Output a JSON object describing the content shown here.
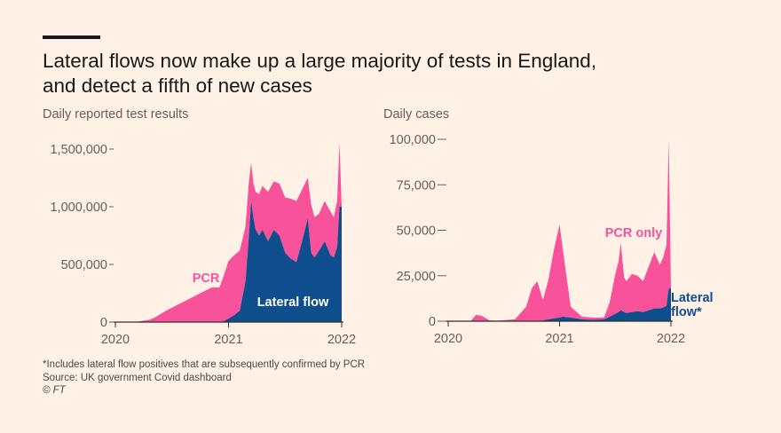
{
  "headline": {
    "line1": "Lateral flows now make up a large majority of tests in England,",
    "line2": "and detect a fifth of new cases"
  },
  "colors": {
    "pcr": "#f7529a",
    "lateral_flow": "#0f4e8c",
    "axis": "#66605c",
    "background": "#fff1e5"
  },
  "chart_data": [
    {
      "type": "area",
      "stacked": true,
      "title": "Daily reported test results",
      "xlabel": "",
      "ylabel": "",
      "xlim": [
        2020.0,
        2022.0
      ],
      "ylim": [
        0,
        1600000
      ],
      "yticks": [
        0,
        500000,
        1000000,
        1500000
      ],
      "ytick_labels": [
        "0",
        "500,000",
        "1,000,000",
        "1,500,000"
      ],
      "xticks": [
        2020,
        2021,
        2022
      ],
      "xtick_labels": [
        "2020",
        "2021",
        "2022"
      ],
      "annotations": [
        "PCR",
        "Lateral flow"
      ],
      "x": [
        2020.0,
        2020.1,
        2020.2,
        2020.3,
        2020.35,
        2020.45,
        2020.55,
        2020.65,
        2020.75,
        2020.85,
        2020.92,
        2020.96,
        2021.0,
        2021.05,
        2021.1,
        2021.15,
        2021.18,
        2021.2,
        2021.22,
        2021.24,
        2021.27,
        2021.3,
        2021.35,
        2021.4,
        2021.45,
        2021.5,
        2021.55,
        2021.6,
        2021.65,
        2021.7,
        2021.73,
        2021.76,
        2021.8,
        2021.85,
        2021.9,
        2021.93,
        2021.96,
        2021.98,
        2022.0
      ],
      "series": [
        {
          "name": "Lateral flow",
          "values": [
            0,
            0,
            0,
            0,
            0,
            0,
            0,
            0,
            0,
            0,
            0,
            10000,
            30000,
            60000,
            100000,
            350000,
            750000,
            1050000,
            900000,
            800000,
            750000,
            800000,
            700000,
            800000,
            750000,
            600000,
            550000,
            520000,
            700000,
            900000,
            600000,
            560000,
            620000,
            700000,
            580000,
            560000,
            650000,
            1000000,
            1000000
          ]
        },
        {
          "name": "PCR",
          "values": [
            0,
            0,
            5000,
            20000,
            40000,
            100000,
            150000,
            200000,
            250000,
            300000,
            300000,
            400000,
            500000,
            520000,
            520000,
            480000,
            470000,
            330000,
            300000,
            330000,
            360000,
            380000,
            430000,
            420000,
            450000,
            480000,
            520000,
            530000,
            450000,
            350000,
            420000,
            350000,
            320000,
            350000,
            380000,
            350000,
            400000,
            550000,
            0
          ]
        }
      ]
    },
    {
      "type": "area",
      "stacked": true,
      "title": "Daily cases",
      "xlabel": "",
      "ylabel": "",
      "xlim": [
        2020.0,
        2022.0
      ],
      "ylim": [
        0,
        100000
      ],
      "yticks": [
        0,
        25000,
        50000,
        75000,
        100000
      ],
      "ytick_labels": [
        "0",
        "25,000",
        "50,000",
        "75,000",
        "100,000"
      ],
      "xticks": [
        2020,
        2021,
        2022
      ],
      "xtick_labels": [
        "2020",
        "2021",
        "2022"
      ],
      "annotations": [
        "PCR only",
        "Lateral",
        "flow*"
      ],
      "x": [
        2020.0,
        2020.2,
        2020.25,
        2020.3,
        2020.37,
        2020.45,
        2020.6,
        2020.7,
        2020.75,
        2020.8,
        2020.85,
        2020.9,
        2020.95,
        2021.0,
        2021.03,
        2021.1,
        2021.2,
        2021.3,
        2021.4,
        2021.45,
        2021.5,
        2021.53,
        2021.55,
        2021.58,
        2021.6,
        2021.65,
        2021.7,
        2021.75,
        2021.8,
        2021.85,
        2021.9,
        2021.93,
        2021.96,
        2021.98,
        2022.0
      ],
      "series": [
        {
          "name": "Lateral flow",
          "values": [
            0,
            0,
            0,
            0,
            0,
            0,
            0,
            0,
            0,
            0,
            500,
            1000,
            1500,
            2000,
            2500,
            2000,
            1000,
            800,
            1000,
            2500,
            4000,
            5000,
            6000,
            5000,
            4500,
            5000,
            5500,
            5000,
            6000,
            7000,
            7000,
            7500,
            8500,
            18000,
            18000
          ]
        },
        {
          "name": "PCR only",
          "values": [
            0,
            0,
            3500,
            3000,
            500,
            300,
            1000,
            8000,
            18000,
            22000,
            11000,
            22000,
            38000,
            51000,
            36500,
            6000,
            1500,
            1200,
            1000,
            8000,
            22000,
            28000,
            37000,
            19000,
            17500,
            21000,
            19500,
            17000,
            24000,
            31000,
            24000,
            27500,
            33500,
            82000,
            0
          ]
        }
      ]
    }
  ],
  "footer": {
    "note": "*Includes lateral flow positives that are subsequently confirmed by PCR",
    "source": "Source: UK government Covid dashboard",
    "credit": "© FT"
  }
}
